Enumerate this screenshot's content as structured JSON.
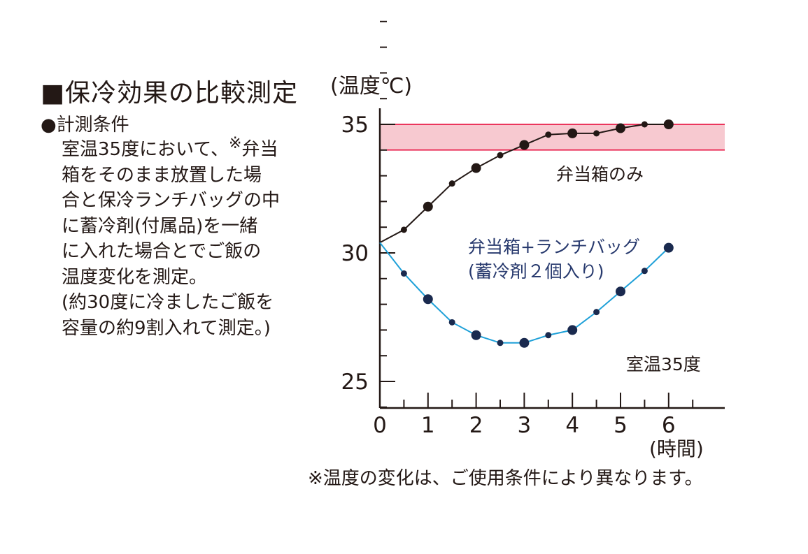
{
  "heading": "■保冷効果の比較測定",
  "conditions_title": "●計測条件",
  "description_lines": [
    "室温35度において、",
    "※",
    "弁当",
    "箱をそのまま放置した場",
    "合と保冷ランチバッグの中",
    "に蓄冷剤(付属品)を一緒",
    "に入れた場合とでご飯の",
    "温度変化を測定。",
    "(約30度に冷ましたご飯を",
    "容量の約9割入れて測定。)"
  ],
  "footnote": "※温度の変化は、ご使用条件により異なります。",
  "chart_data": {
    "type": "line",
    "ylabel": "(温度℃)",
    "xlabel": "(時間)",
    "xlim": [
      0,
      7.2
    ],
    "ylim": [
      24,
      40
    ],
    "y_ticks": [
      25,
      30,
      35
    ],
    "x_ticks": [
      0,
      1,
      2,
      3,
      4,
      5,
      6
    ],
    "grid": false,
    "band": {
      "from": 34,
      "to": 35,
      "color": "#f7c9d0",
      "edge_color": "#e60033"
    },
    "series": [
      {
        "name": "弁当箱のみ",
        "color": "#231815",
        "x": [
          0,
          0.5,
          1.0,
          1.5,
          2.0,
          2.5,
          3.0,
          3.5,
          4.0,
          4.5,
          5.0,
          5.5,
          6.0
        ],
        "y": [
          30.4,
          30.9,
          31.8,
          32.7,
          33.3,
          33.8,
          34.2,
          34.6,
          34.65,
          34.65,
          34.85,
          35.0,
          35.0
        ],
        "marker_large": [
          false,
          false,
          true,
          false,
          true,
          false,
          true,
          false,
          true,
          false,
          true,
          false,
          true
        ]
      },
      {
        "name": "弁当箱+ランチバッグ",
        "name_line2": "(蓄冷剤２個入り)",
        "color": "#1ea0d8",
        "marker_color": "#1a2a4f",
        "x": [
          0,
          0.5,
          1.0,
          1.5,
          2.0,
          2.5,
          3.0,
          3.5,
          4.0,
          4.5,
          5.0,
          5.5,
          6.0
        ],
        "y": [
          30.4,
          29.2,
          28.2,
          27.3,
          26.8,
          26.5,
          26.5,
          26.8,
          27.0,
          27.7,
          28.5,
          29.3,
          30.2
        ],
        "marker_large": [
          true,
          false,
          true,
          false,
          true,
          false,
          true,
          false,
          true,
          false,
          true,
          false,
          true
        ]
      }
    ],
    "annotation": "室温35度"
  }
}
